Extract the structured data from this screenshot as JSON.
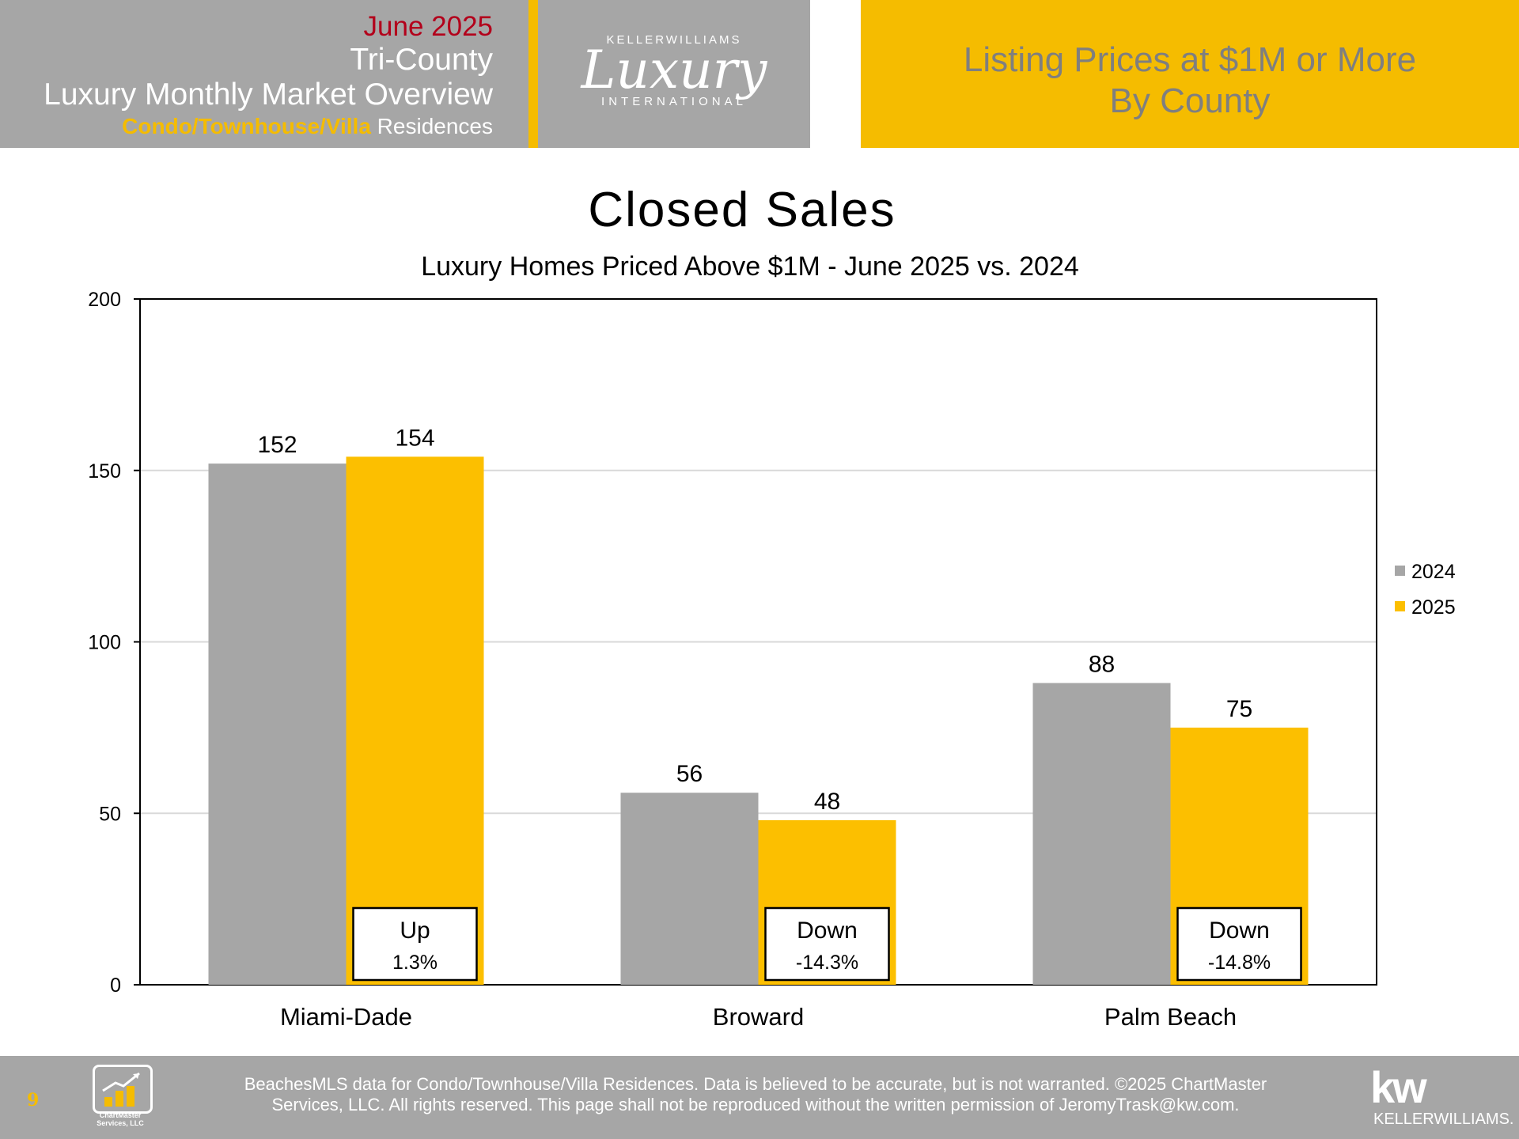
{
  "header": {
    "month": "June 2025",
    "region": "Tri-County",
    "title": "Luxury Monthly Market Overview",
    "type_highlight": "Condo/Townhouse/Villa",
    "type_rest": " Residences",
    "logo_top": "KELLERWILLIAMS",
    "logo_script": "Luxury",
    "logo_bottom": "INTERNATIONAL",
    "right_line1": "Listing Prices at $1M or More",
    "right_line2": "By County"
  },
  "chart_data": {
    "type": "bar",
    "title": "Closed Sales",
    "subtitle": "Luxury Homes Priced Above $1M - June 2025 vs. 2024",
    "categories": [
      "Miami-Dade",
      "Broward",
      "Palm Beach"
    ],
    "series": [
      {
        "name": "2024",
        "values": [
          152,
          56,
          88
        ],
        "color": "#a6a6a6"
      },
      {
        "name": "2025",
        "values": [
          154,
          48,
          75
        ],
        "color": "#fcbf00"
      }
    ],
    "ylim": [
      0,
      200
    ],
    "yticks": [
      0,
      50,
      100,
      150,
      200
    ],
    "grid": true,
    "legend": "right",
    "annotations": [
      {
        "direction": "Up",
        "change": "1.3%"
      },
      {
        "direction": "Down",
        "change": "-14.3%"
      },
      {
        "direction": "Down",
        "change": "-14.8%"
      }
    ]
  },
  "footer": {
    "page_number": "9",
    "chartmaster_label_1": "ChartMaster",
    "chartmaster_label_2": "Services, LLC",
    "disclaimer_line1": "BeachesMLS data for Condo/Townhouse/Villa Residences.  Data is believed to be accurate, but is not warranted.   ©2025  ChartMaster",
    "disclaimer_line2": "Services, LLC.  All rights reserved. This page shall not be reproduced without the written permission of JeromyTrask@kw.com.",
    "kw_logo": "kw",
    "kw_name": "KELLERWILLIAMS."
  }
}
